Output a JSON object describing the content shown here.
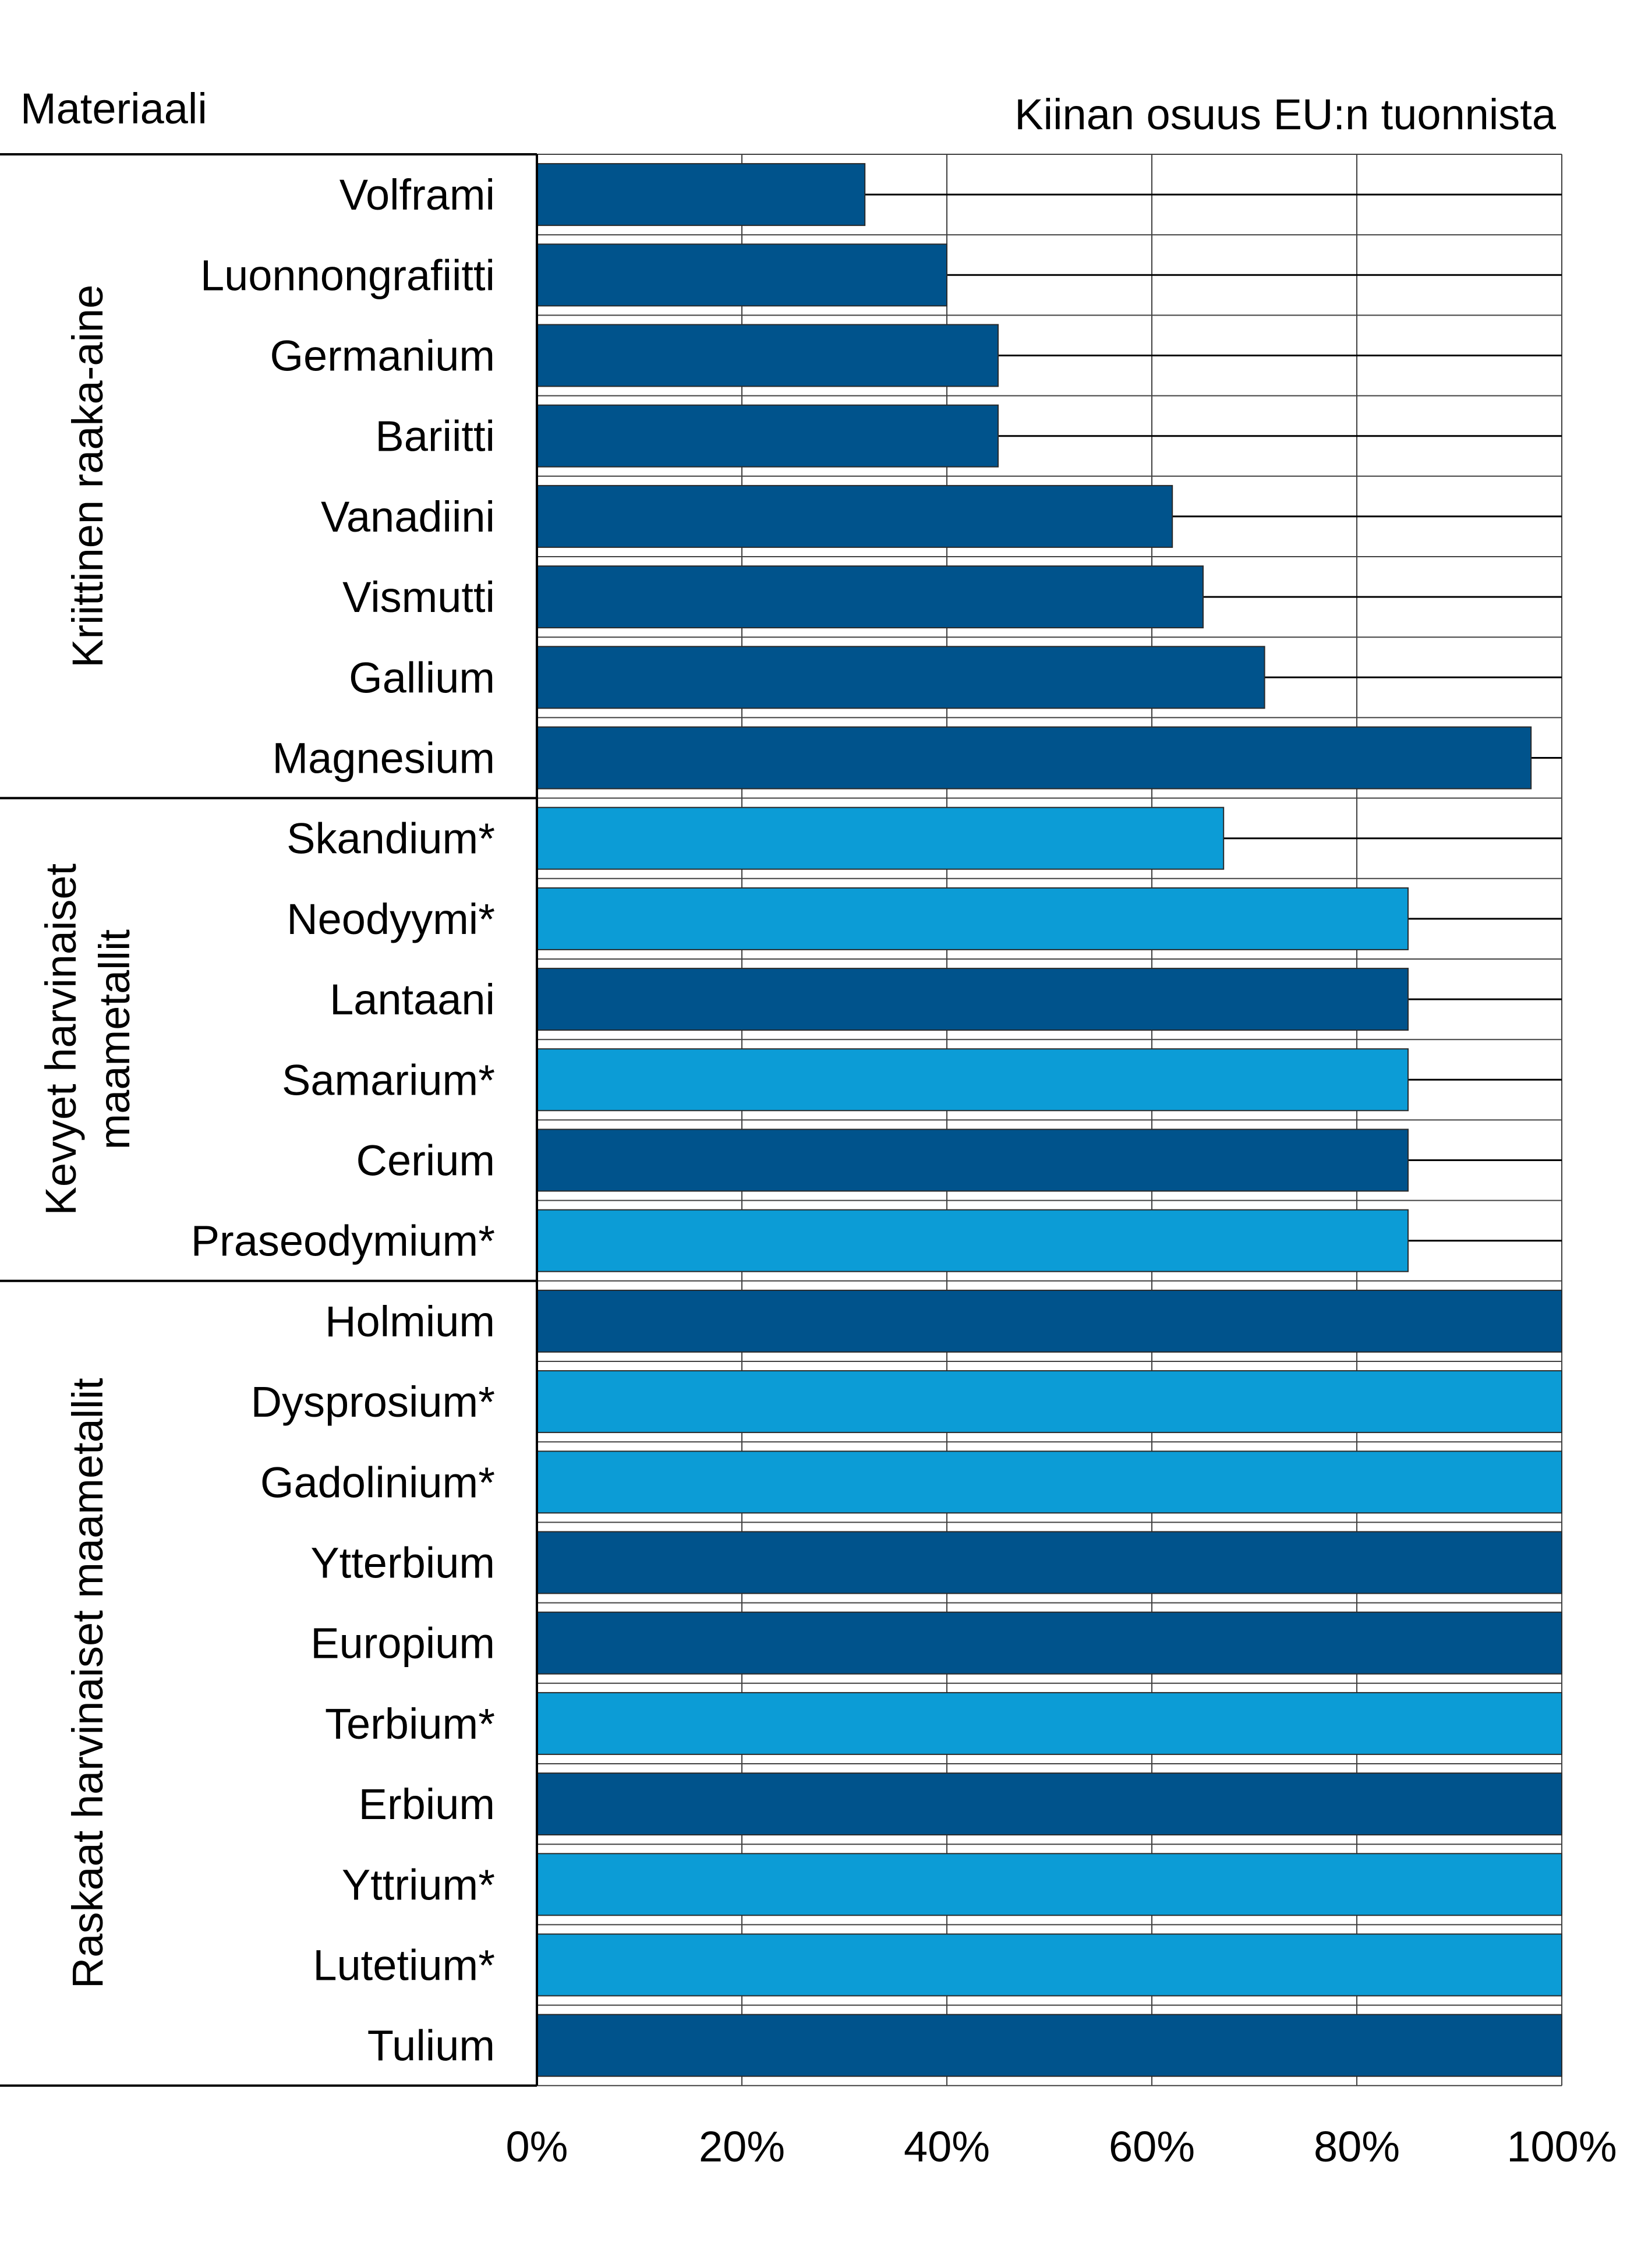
{
  "chart_data": {
    "type": "bar",
    "orientation": "horizontal",
    "column_header_left": "Materiaali",
    "title": "Kiinan osuus EU:n tuonnista",
    "xlim": [
      0,
      100
    ],
    "x_ticks": [
      "0%",
      "20%",
      "40%",
      "60%",
      "80%",
      "100%"
    ],
    "grid": true,
    "colors": {
      "dark": "#00538c",
      "light": "#0c9cd6",
      "grid": "#404040"
    },
    "groups": [
      {
        "label": "Kriittinen raaka-aine",
        "label_lines": [
          "Kriittinen raaka-aine"
        ],
        "items": [
          {
            "name": "Volframi",
            "value": 32,
            "color": "dark"
          },
          {
            "name": "Luonnongrafiitti",
            "value": 40,
            "color": "dark"
          },
          {
            "name": "Germanium",
            "value": 45,
            "color": "dark"
          },
          {
            "name": "Bariitti",
            "value": 45,
            "color": "dark"
          },
          {
            "name": "Vanadiini",
            "value": 62,
            "color": "dark"
          },
          {
            "name": "Vismutti",
            "value": 65,
            "color": "dark"
          },
          {
            "name": "Gallium",
            "value": 71,
            "color": "dark"
          },
          {
            "name": "Magnesium",
            "value": 97,
            "color": "dark"
          }
        ]
      },
      {
        "label": "Kevyet harvinaiset maametallit",
        "label_lines": [
          "Kevyet harvinaiset",
          "maametallit"
        ],
        "items": [
          {
            "name": "Skandium*",
            "value": 67,
            "color": "light"
          },
          {
            "name": "Neodyymi*",
            "value": 85,
            "color": "light"
          },
          {
            "name": "Lantaani",
            "value": 85,
            "color": "dark"
          },
          {
            "name": "Samarium*",
            "value": 85,
            "color": "light"
          },
          {
            "name": "Cerium",
            "value": 85,
            "color": "dark"
          },
          {
            "name": "Praseodymium*",
            "value": 85,
            "color": "light"
          }
        ]
      },
      {
        "label": "Raskaat harvinaiset maametallit",
        "label_lines": [
          "Raskaat harvinaiset maametallit"
        ],
        "items": [
          {
            "name": "Holmium",
            "value": 100,
            "color": "dark"
          },
          {
            "name": "Dysprosium*",
            "value": 100,
            "color": "light"
          },
          {
            "name": "Gadolinium*",
            "value": 100,
            "color": "light"
          },
          {
            "name": "Ytterbium",
            "value": 100,
            "color": "dark"
          },
          {
            "name": "Europium",
            "value": 100,
            "color": "dark"
          },
          {
            "name": "Terbium*",
            "value": 100,
            "color": "light"
          },
          {
            "name": "Erbium",
            "value": 100,
            "color": "dark"
          },
          {
            "name": "Yttrium*",
            "value": 100,
            "color": "light"
          },
          {
            "name": "Lutetium*",
            "value": 100,
            "color": "light"
          },
          {
            "name": "Tulium",
            "value": 100,
            "color": "dark"
          }
        ]
      }
    ]
  }
}
